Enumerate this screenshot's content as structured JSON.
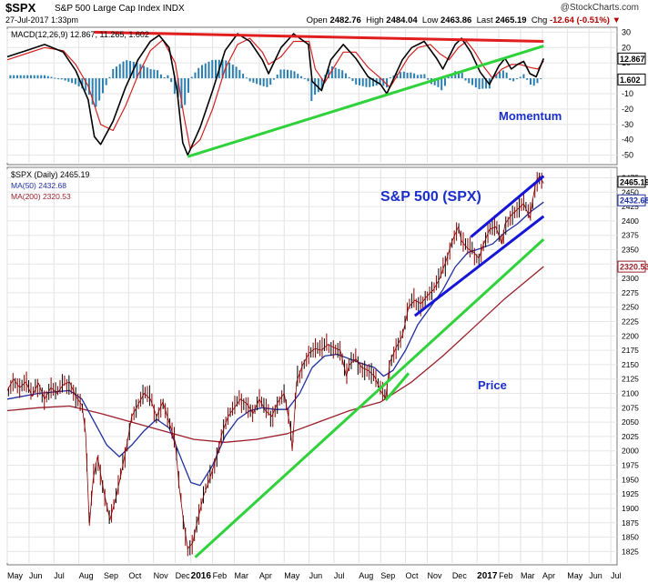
{
  "header": {
    "ticker": "$SPX",
    "description": "S&P 500 Large Cap Index INDX",
    "date": "27-Jul-2017 1:33pm",
    "brand": "@StockCharts.com",
    "open_label": "Open",
    "open": "2482.76",
    "high_label": "High",
    "high": "2484.04",
    "low_label": "Low",
    "low": "2463.86",
    "last_label": "Last",
    "last": "2465.19",
    "chg_label": "Chg",
    "chg": "-12.64 (-0.51%)",
    "chg_arrow": "▼"
  },
  "colors": {
    "price": "#8b0000",
    "ma50": "#1f2f9f",
    "ma200": "#9a1f2a",
    "macd": "#000000",
    "signal": "#d42020",
    "hist": "#2a7fb0",
    "trend_green": "#2fd23a",
    "trend_red": "#e01e1e",
    "channel": "#1515d8",
    "annotation": "#1a2ecc"
  },
  "chart_data": [
    {
      "type": "line",
      "panel": "MACD",
      "legend": "MACD(12,26,9) 12.867, 11.265, 1.602",
      "ylim": [
        -55,
        32
      ],
      "ticks": [
        30,
        20,
        10,
        0,
        -10,
        -20,
        -30,
        -40,
        -50
      ],
      "tick_labels": [
        "30",
        "20",
        "10",
        "0",
        "-10",
        "-20",
        "-30",
        "-40",
        "-50"
      ],
      "current_macd_label": "12.867",
      "current_hist_label": "1.602",
      "annotation": "Momentum",
      "macd": [
        [
          0,
          14
        ],
        [
          3,
          18
        ],
        [
          6,
          22
        ],
        [
          9,
          17
        ],
        [
          11,
          5
        ],
        [
          13,
          -14
        ],
        [
          14,
          -38
        ],
        [
          15,
          -43
        ],
        [
          17,
          -28
        ],
        [
          19,
          -6
        ],
        [
          21,
          12
        ],
        [
          23,
          24
        ],
        [
          24.4,
          28
        ],
        [
          26,
          20
        ],
        [
          27.3,
          -8
        ],
        [
          28.2,
          -42
        ],
        [
          29,
          -50
        ],
        [
          31,
          -32
        ],
        [
          33,
          -8
        ],
        [
          35,
          18
        ],
        [
          37,
          29
        ],
        [
          39,
          24
        ],
        [
          41,
          12
        ],
        [
          42,
          3
        ],
        [
          44,
          20
        ],
        [
          46,
          29
        ],
        [
          48.4,
          22
        ],
        [
          49,
          -2
        ],
        [
          50.5,
          -8
        ],
        [
          52,
          12
        ],
        [
          54,
          22
        ],
        [
          56,
          13
        ],
        [
          58,
          1
        ],
        [
          60,
          -4
        ],
        [
          61,
          -10
        ],
        [
          62,
          -1
        ],
        [
          63.5,
          12
        ],
        [
          65,
          20
        ],
        [
          67,
          24
        ],
        [
          69,
          13
        ],
        [
          70,
          6
        ],
        [
          72,
          22
        ],
        [
          73,
          26
        ],
        [
          74.5,
          17
        ],
        [
          76,
          4
        ],
        [
          77.5,
          -4
        ],
        [
          79,
          8
        ],
        [
          80,
          13
        ],
        [
          81,
          6
        ],
        [
          82,
          9
        ],
        [
          83,
          11
        ],
        [
          84,
          3
        ],
        [
          85,
          1
        ],
        [
          86.2,
          12.867
        ]
      ],
      "signal": [
        [
          0,
          12
        ],
        [
          3,
          16
        ],
        [
          6,
          20
        ],
        [
          9,
          18
        ],
        [
          11,
          9
        ],
        [
          13,
          -5
        ],
        [
          15,
          -30
        ],
        [
          17,
          -34
        ],
        [
          19,
          -18
        ],
        [
          21,
          2
        ],
        [
          23,
          18
        ],
        [
          25,
          25
        ],
        [
          27,
          10
        ],
        [
          28.4,
          -25
        ],
        [
          29.4,
          -46
        ],
        [
          31,
          -40
        ],
        [
          33,
          -20
        ],
        [
          35,
          6
        ],
        [
          37,
          22
        ],
        [
          39,
          26
        ],
        [
          41,
          17
        ],
        [
          42,
          9
        ],
        [
          44,
          14
        ],
        [
          46,
          24
        ],
        [
          48.5,
          24
        ],
        [
          49.5,
          6
        ],
        [
          51,
          -3
        ],
        [
          52,
          4
        ],
        [
          54,
          17
        ],
        [
          56,
          17
        ],
        [
          58,
          7
        ],
        [
          60,
          0
        ],
        [
          61.5,
          -6
        ],
        [
          63,
          4
        ],
        [
          64.5,
          14
        ],
        [
          66,
          20
        ],
        [
          68,
          22
        ],
        [
          69.5,
          16
        ],
        [
          71,
          12
        ],
        [
          72.5,
          20
        ],
        [
          73.8,
          24
        ],
        [
          75,
          18
        ],
        [
          76.5,
          8
        ],
        [
          78,
          0
        ],
        [
          79.5,
          6
        ],
        [
          81,
          9
        ],
        [
          82.5,
          9
        ],
        [
          84,
          7
        ],
        [
          85.3,
          6
        ],
        [
          86.2,
          11.265
        ]
      ],
      "trendlines": [
        {
          "color": "red",
          "from": [
            14,
            30
          ],
          "to": [
            86.2,
            24
          ]
        },
        {
          "color": "green",
          "from": [
            29,
            -51
          ],
          "to": [
            86.2,
            21
          ]
        }
      ]
    },
    {
      "type": "line",
      "panel": "Price",
      "legend": "$SPX (Daily) 2465.19",
      "ma50_label": "MA(50) 2432.68",
      "ma200_label": "MA(200) 2320.53",
      "ylim": [
        1805,
        2490
      ],
      "ticks": [
        2475,
        2450,
        2425,
        2400,
        2375,
        2350,
        2325,
        2300,
        2275,
        2250,
        2225,
        2200,
        2175,
        2150,
        2125,
        2100,
        2075,
        2050,
        2025,
        2000,
        1975,
        1950,
        1925,
        1900,
        1875,
        1850,
        1825
      ],
      "tick_labels": [
        "2475",
        "2450",
        "2425",
        "2400",
        "2375",
        "2350",
        "2325",
        "2300",
        "2275",
        "2250",
        "2225",
        "2200",
        "2175",
        "2150",
        "2125",
        "2100",
        "2075",
        "2050",
        "2025",
        "2000",
        "1975",
        "1950",
        "1925",
        "1900",
        "1875",
        "1850",
        "1825"
      ],
      "current_labels": [
        "2465.19",
        "2432.68",
        "2320.53"
      ],
      "annotation_title": "S&P 500 (SPX)",
      "annotation_price": "Price",
      "price": [
        [
          0,
          2105
        ],
        [
          1,
          2125
        ],
        [
          2,
          2110
        ],
        [
          3,
          2120
        ],
        [
          4,
          2095
        ],
        [
          5,
          2118
        ],
        [
          6,
          2090
        ],
        [
          7,
          2110
        ],
        [
          8,
          2100
        ],
        [
          9,
          2115
        ],
        [
          10,
          2120
        ],
        [
          11,
          2095
        ],
        [
          12,
          2080
        ],
        [
          12.6,
          2030
        ],
        [
          13.2,
          1870
        ],
        [
          13.8,
          1950
        ],
        [
          14.5,
          1990
        ],
        [
          15.5,
          1930
        ],
        [
          16.5,
          1880
        ],
        [
          17.5,
          1920
        ],
        [
          18.3,
          1960
        ],
        [
          19.2,
          2010
        ],
        [
          20,
          2060
        ],
        [
          21,
          2080
        ],
        [
          22,
          2100
        ],
        [
          23,
          2090
        ],
        [
          24,
          2060
        ],
        [
          25,
          2085
        ],
        [
          26,
          2050
        ],
        [
          27,
          2015
        ],
        [
          27.6,
          1940
        ],
        [
          28.3,
          1880
        ],
        [
          29,
          1830
        ],
        [
          29.8,
          1840
        ],
        [
          30.5,
          1875
        ],
        [
          31.5,
          1920
        ],
        [
          32.5,
          1950
        ],
        [
          33.5,
          1985
        ],
        [
          34.5,
          2030
        ],
        [
          35.5,
          2060
        ],
        [
          36.5,
          2075
        ],
        [
          37.5,
          2090
        ],
        [
          38.5,
          2082
        ],
        [
          39.5,
          2065
        ],
        [
          40.5,
          2090
        ],
        [
          41.5,
          2070
        ],
        [
          42.5,
          2060
        ],
        [
          43.5,
          2085
        ],
        [
          44.5,
          2100
        ],
        [
          45.5,
          2040
        ],
        [
          45.8,
          2000
        ],
        [
          46.5,
          2120
        ],
        [
          47.5,
          2150
        ],
        [
          48.5,
          2170
        ],
        [
          49.5,
          2178
        ],
        [
          50.5,
          2175
        ],
        [
          51.5,
          2185
        ],
        [
          52.5,
          2180
        ],
        [
          53.5,
          2175
        ],
        [
          54.5,
          2130
        ],
        [
          55,
          2150
        ],
        [
          56,
          2160
        ],
        [
          57,
          2145
        ],
        [
          58,
          2140
        ],
        [
          59,
          2130
        ],
        [
          60,
          2105
        ],
        [
          60.8,
          2090
        ],
        [
          61.5,
          2155
        ],
        [
          62.5,
          2180
        ],
        [
          63.5,
          2200
        ],
        [
          64.5,
          2250
        ],
        [
          65.5,
          2262
        ],
        [
          66.5,
          2256
        ],
        [
          67.5,
          2270
        ],
        [
          68.5,
          2280
        ],
        [
          69.5,
          2300
        ],
        [
          70.5,
          2330
        ],
        [
          71.5,
          2365
        ],
        [
          72.5,
          2390
        ],
        [
          73,
          2365
        ],
        [
          74,
          2352
        ],
        [
          75,
          2345
        ],
        [
          75.8,
          2335
        ],
        [
          76.5,
          2358
        ],
        [
          77.5,
          2385
        ],
        [
          78.5,
          2390
        ],
        [
          79.5,
          2360
        ],
        [
          80,
          2395
        ],
        [
          81,
          2410
        ],
        [
          82,
          2420
        ],
        [
          83,
          2430
        ],
        [
          84,
          2405
        ],
        [
          84.5,
          2440
        ],
        [
          85,
          2470
        ],
        [
          85.6,
          2478
        ],
        [
          86.2,
          2465.19
        ]
      ],
      "ma50": [
        [
          0,
          2090
        ],
        [
          5,
          2100
        ],
        [
          10,
          2105
        ],
        [
          12,
          2090
        ],
        [
          14,
          2050
        ],
        [
          16,
          2010
        ],
        [
          18,
          1990
        ],
        [
          20,
          2010
        ],
        [
          22,
          2035
        ],
        [
          24,
          2055
        ],
        [
          26,
          2040
        ],
        [
          28,
          1985
        ],
        [
          29.5,
          1945
        ],
        [
          31,
          1940
        ],
        [
          33,
          1975
        ],
        [
          35,
          2025
        ],
        [
          37,
          2055
        ],
        [
          39,
          2070
        ],
        [
          41,
          2075
        ],
        [
          43,
          2072
        ],
        [
          45,
          2072
        ],
        [
          47,
          2100
        ],
        [
          49,
          2145
        ],
        [
          51,
          2165
        ],
        [
          53,
          2168
        ],
        [
          55,
          2160
        ],
        [
          57,
          2152
        ],
        [
          59,
          2145
        ],
        [
          60.5,
          2130
        ],
        [
          62,
          2140
        ],
        [
          64,
          2175
        ],
        [
          66,
          2220
        ],
        [
          68,
          2250
        ],
        [
          70,
          2280
        ],
        [
          72,
          2320
        ],
        [
          74,
          2345
        ],
        [
          76,
          2352
        ],
        [
          78,
          2360
        ],
        [
          80,
          2380
        ],
        [
          82,
          2395
        ],
        [
          84,
          2415
        ],
        [
          86.2,
          2432.68
        ]
      ],
      "ma200": [
        [
          0,
          2070
        ],
        [
          5,
          2075
        ],
        [
          10,
          2078
        ],
        [
          15,
          2065
        ],
        [
          20,
          2050
        ],
        [
          25,
          2035
        ],
        [
          30,
          2020
        ],
        [
          35,
          2015
        ],
        [
          40,
          2020
        ],
        [
          45,
          2030
        ],
        [
          50,
          2050
        ],
        [
          55,
          2070
        ],
        [
          60,
          2085
        ],
        [
          65,
          2120
        ],
        [
          70,
          2165
        ],
        [
          75,
          2215
        ],
        [
          80,
          2265
        ],
        [
          86.2,
          2320.53
        ]
      ],
      "trendlines": [
        {
          "color": "green",
          "from": [
            30.2,
            1815
          ],
          "to": [
            86.2,
            2368
          ]
        },
        {
          "color": "green",
          "from": [
            60.8,
            2088
          ],
          "to": [
            64.5,
            2135
          ]
        },
        {
          "color": "blue",
          "from": [
            65.5,
            2235
          ],
          "to": [
            86.2,
            2408
          ]
        },
        {
          "color": "blue",
          "from": [
            74.5,
            2372
          ],
          "to": [
            86.2,
            2478
          ]
        }
      ]
    }
  ],
  "x_axis": {
    "labels": [
      "May",
      "Jun",
      "Jul",
      "Aug",
      "Sep",
      "Oct",
      "Nov",
      "Dec",
      "2016",
      "Feb",
      "Mar",
      "Apr",
      "May",
      "Jun",
      "Jul",
      "Aug",
      "Sep",
      "Oct",
      "Nov",
      "Dec",
      "2017",
      "Feb",
      "Mar",
      "Apr",
      "May",
      "Jun",
      "Jul"
    ],
    "positions": [
      0,
      3.5,
      7.5,
      11.5,
      15.5,
      19.5,
      23.5,
      27,
      29.5,
      33,
      36.5,
      40.5,
      44.5,
      48.5,
      52.5,
      56.5,
      60,
      64,
      67.5,
      71.5,
      75.5,
      79,
      82.5,
      86,
      90,
      93.5,
      97
    ]
  }
}
